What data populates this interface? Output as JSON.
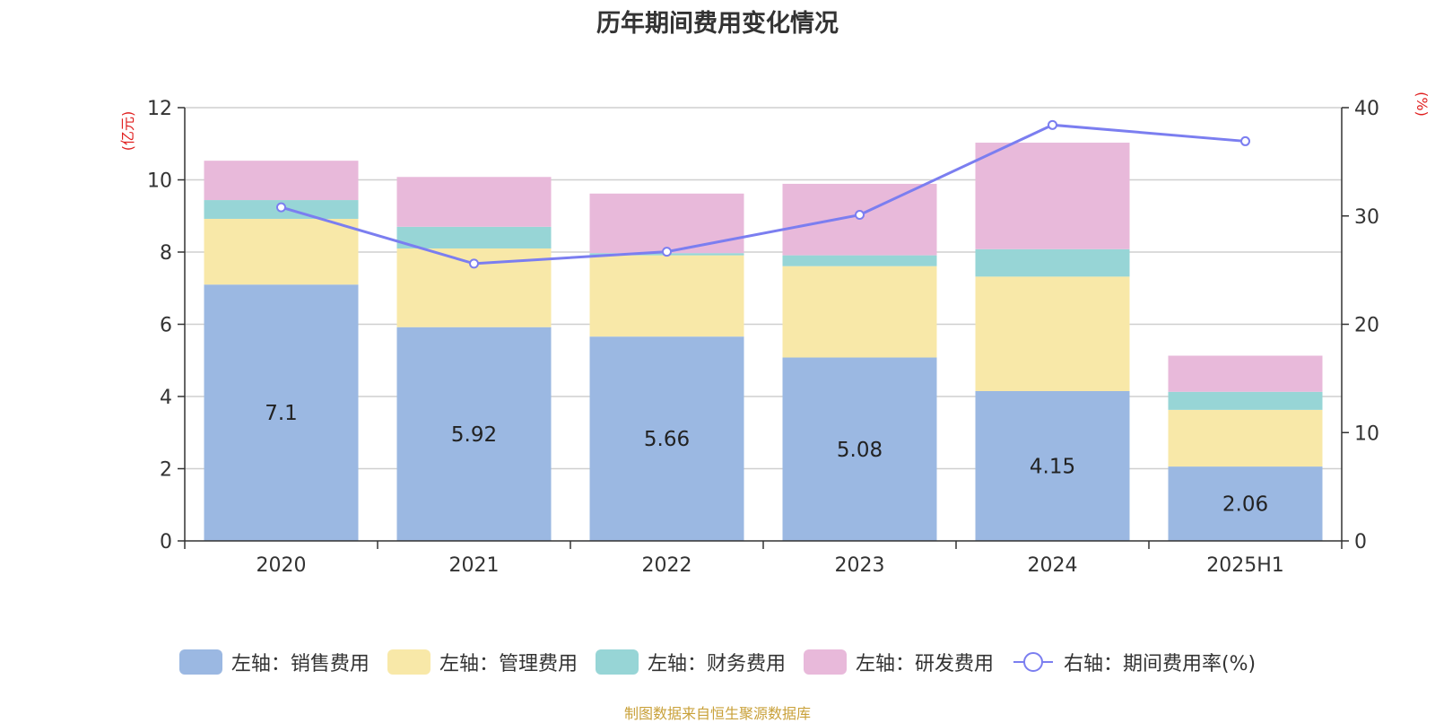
{
  "chart_data": {
    "type": "bar",
    "stacked": true,
    "title": "历年期间费用变化情况",
    "categories": [
      "2020",
      "2021",
      "2022",
      "2023",
      "2024",
      "2025H1"
    ],
    "y_left": {
      "unit_label": "(亿元)",
      "range": [
        0,
        12
      ],
      "ticks": [
        "0",
        "2",
        "4",
        "6",
        "8",
        "10",
        "12"
      ]
    },
    "y_right": {
      "unit_label": "(%)",
      "range": [
        0,
        40
      ],
      "ticks": [
        "0",
        "10",
        "20",
        "30",
        "40"
      ]
    },
    "series": [
      {
        "name": "左轴：销售费用",
        "axis": "left",
        "color": "#9bb8e2",
        "values": [
          7.1,
          5.92,
          5.66,
          5.08,
          4.15,
          2.06
        ],
        "labels": [
          "7.1",
          "5.92",
          "5.66",
          "5.08",
          "4.15",
          "2.06"
        ]
      },
      {
        "name": "左轴：管理费用",
        "axis": "left",
        "color": "#f8e8a8",
        "values": [
          1.82,
          2.18,
          2.25,
          2.53,
          3.17,
          1.57
        ]
      },
      {
        "name": "左轴：财务费用",
        "axis": "left",
        "color": "#97d5d6",
        "values": [
          0.52,
          0.6,
          0.06,
          0.3,
          0.76,
          0.5
        ]
      },
      {
        "name": "左轴：研发费用",
        "axis": "left",
        "color": "#e8b9da",
        "values": [
          1.09,
          1.38,
          1.65,
          1.98,
          2.95,
          1.0
        ]
      },
      {
        "name": "右轴：期间费用率(%)",
        "axis": "right",
        "type": "line",
        "color": "#7b7ef0",
        "values": [
          30.8,
          25.6,
          26.7,
          30.1,
          38.4,
          36.9
        ]
      }
    ],
    "grid": true,
    "legend_position": "bottom"
  },
  "footer": {
    "source": "制图数据来自恒生聚源数据库"
  }
}
